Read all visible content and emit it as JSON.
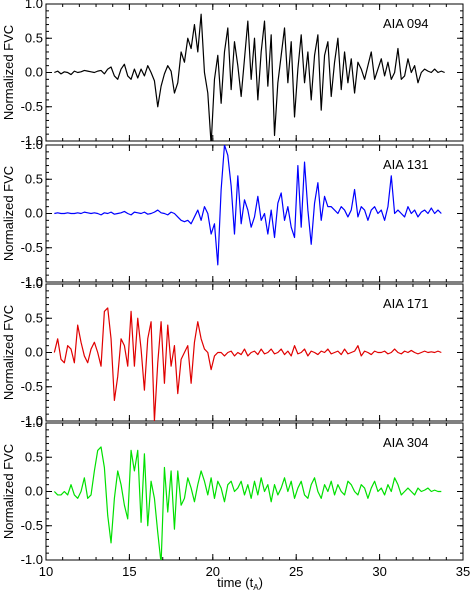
{
  "chart_data": {
    "type": "line",
    "xlabel": "time (t",
    "xlabel_sub": "A",
    "xlabel_close": ")",
    "ylabel": "Normalized FVC",
    "xlim": [
      10,
      35
    ],
    "ylim": [
      -1.0,
      1.0
    ],
    "x_ticks": [
      10,
      15,
      20,
      25,
      30,
      35
    ],
    "y_ticks": [
      1.0,
      0.5,
      0.0,
      -0.5,
      -1.0
    ],
    "x_tick_labels": [
      "10",
      "15",
      "20",
      "25",
      "30",
      "35"
    ],
    "y_tick_labels": [
      "1.0",
      "0.5",
      "0.0",
      "-0.5",
      "-1.0"
    ],
    "grid": false,
    "panels": [
      {
        "label": "AIA 094",
        "color": "#000000",
        "x_start": 10.5,
        "x_step": 0.2,
        "values": [
          0.0,
          0.02,
          -0.02,
          0.01,
          0.0,
          -0.03,
          0.02,
          0.0,
          0.01,
          0.03,
          0.02,
          0.01,
          0.0,
          0.02,
          0.03,
          -0.02,
          0.05,
          0.08,
          -0.05,
          -0.1,
          0.05,
          0.12,
          -0.05,
          -0.1,
          0.05,
          -0.08,
          0.05,
          -0.05,
          0.1,
          0.0,
          -0.12,
          -0.5,
          -0.2,
          -0.02,
          0.1,
          0.02,
          -0.3,
          -0.15,
          0.3,
          0.15,
          0.5,
          0.35,
          0.7,
          0.3,
          0.85,
          0.0,
          -0.3,
          -1.05,
          -0.1,
          0.25,
          -0.45,
          0.3,
          0.65,
          -0.25,
          0.45,
          0.1,
          -0.35,
          0.2,
          0.75,
          -0.1,
          0.5,
          -0.4,
          0.3,
          0.75,
          -0.2,
          0.55,
          -0.92,
          -0.15,
          0.25,
          0.65,
          -0.15,
          0.45,
          -0.65,
          0.05,
          0.55,
          -0.15,
          0.3,
          -0.4,
          0.25,
          0.55,
          -0.55,
          0.25,
          0.45,
          -0.35,
          0.15,
          0.5,
          -0.25,
          0.3,
          -0.15,
          0.2,
          -0.3,
          0.15,
          0.05,
          -0.1,
          0.1,
          0.3,
          -0.1,
          0.05,
          0.2,
          -0.05,
          0.15,
          -0.1,
          0.0,
          0.35,
          -0.1,
          -0.05,
          0.2,
          0.0,
          0.1,
          -0.15,
          0.0,
          0.05,
          0.02,
          0.0,
          0.05,
          0.0,
          0.02,
          0.0
        ],
        "first_peak_index": 45
      },
      {
        "label": "AIA 131",
        "color": "#0000ff",
        "x_start": 10.5,
        "x_step": 0.2,
        "values": [
          0.0,
          0.01,
          0.0,
          0.0,
          0.01,
          0.0,
          0.0,
          0.01,
          0.0,
          0.02,
          0.01,
          0.0,
          0.01,
          0.0,
          -0.02,
          0.01,
          0.0,
          0.02,
          -0.01,
          0.0,
          0.01,
          0.03,
          0.0,
          -0.02,
          0.02,
          0.01,
          0.0,
          0.02,
          -0.01,
          0.0,
          0.02,
          0.05,
          0.01,
          0.0,
          -0.02,
          0.02,
          0.0,
          -0.05,
          -0.1,
          -0.12,
          -0.1,
          -0.15,
          -0.05,
          0.05,
          -0.1,
          0.1,
          0.0,
          -0.3,
          -0.15,
          -0.75,
          0.35,
          1.0,
          0.85,
          0.4,
          -0.3,
          0.55,
          -0.15,
          0.2,
          0.05,
          -0.2,
          -0.05,
          0.25,
          -0.1,
          0.0,
          -0.3,
          0.05,
          -0.35,
          0.15,
          0.3,
          -0.1,
          0.1,
          -0.2,
          -0.35,
          0.7,
          -0.2,
          0.75,
          0.05,
          -0.45,
          0.15,
          0.45,
          -0.1,
          0.25,
          0.1,
          0.1,
          0.05,
          0.0,
          0.1,
          0.05,
          -0.05,
          0.05,
          0.35,
          -0.05,
          0.1,
          0.05,
          -0.1,
          0.05,
          0.1,
          0.0,
          0.05,
          -0.1,
          0.1,
          0.55,
          0.0,
          0.05,
          0.0,
          -0.05,
          0.1,
          0.0,
          0.05,
          -0.05,
          0.02,
          0.05,
          0.0,
          0.08,
          0.0,
          0.05,
          0.0
        ],
        "first_peak_index": 50
      },
      {
        "label": "AIA 171",
        "color": "#e00000",
        "x_start": 10.5,
        "x_step": 0.2,
        "values": [
          0.0,
          0.2,
          -0.1,
          -0.15,
          0.1,
          0.05,
          -0.15,
          0.4,
          0.15,
          -0.05,
          -0.15,
          0.05,
          0.15,
          0.0,
          -0.2,
          0.6,
          0.65,
          0.2,
          -0.7,
          -0.35,
          0.2,
          0.1,
          -0.2,
          0.6,
          -0.2,
          0.5,
          0.05,
          -0.55,
          0.2,
          0.45,
          -1.0,
          -0.15,
          0.45,
          -0.45,
          0.4,
          -0.2,
          0.1,
          -0.6,
          -0.1,
          0.0,
          0.1,
          -0.45,
          0.15,
          0.45,
          0.2,
          0.05,
          0.0,
          -0.25,
          -0.05,
          0.0,
          0.0,
          -0.05,
          0.0,
          0.02,
          -0.05,
          0.0,
          -0.03,
          0.05,
          -0.05,
          0.0,
          0.02,
          -0.03,
          0.05,
          -0.02,
          0.0,
          0.05,
          -0.02,
          0.0,
          0.05,
          -0.03,
          0.02,
          -0.05,
          0.1,
          -0.02,
          0.0,
          0.05,
          -0.05,
          0.02,
          0.0,
          -0.03,
          0.02,
          0.0,
          0.05,
          -0.02,
          0.0,
          0.02,
          -0.03,
          0.05,
          -0.02,
          0.0,
          0.02,
          0.1,
          -0.05,
          0.02,
          0.0,
          -0.03,
          0.02,
          0.0,
          0.0,
          0.02,
          -0.02,
          0.0,
          0.05,
          0.0,
          -0.02,
          0.02,
          0.0,
          0.03,
          0.0,
          -0.02,
          0.0,
          0.02,
          0.0,
          0.01,
          0.0,
          0.02,
          0.0
        ],
        "first_peak_index": 15
      },
      {
        "label": "AIA 304",
        "color": "#00e000",
        "x_start": 10.5,
        "x_step": 0.2,
        "values": [
          0.0,
          -0.05,
          -0.05,
          0.0,
          -0.05,
          0.1,
          -0.05,
          -0.1,
          0.0,
          0.2,
          -0.1,
          -0.05,
          0.3,
          0.6,
          0.65,
          0.35,
          -0.35,
          -0.75,
          -0.1,
          0.3,
          0.1,
          -0.2,
          -0.4,
          0.6,
          0.3,
          0.6,
          -0.45,
          0.55,
          -0.5,
          0.15,
          -0.1,
          -0.6,
          -1.05,
          0.35,
          -0.3,
          0.3,
          -0.55,
          0.3,
          -0.2,
          -0.1,
          0.2,
          0.05,
          -0.15,
          0.1,
          0.3,
          0.15,
          -0.05,
          0.2,
          -0.1,
          0.15,
          0.05,
          -0.15,
          0.1,
          0.15,
          0.0,
          0.05,
          0.15,
          -0.05,
          0.1,
          -0.1,
          0.15,
          -0.05,
          0.2,
          0.0,
          0.1,
          -0.15,
          0.1,
          -0.05,
          0.05,
          0.2,
          0.0,
          0.15,
          -0.1,
          0.05,
          0.15,
          -0.05,
          -0.1,
          0.1,
          0.2,
          0.0,
          -0.1,
          0.1,
          0.0,
          0.15,
          -0.05,
          0.1,
          0.0,
          -0.05,
          0.15,
          0.1,
          0.0,
          -0.05,
          0.1,
          0.05,
          -0.1,
          0.05,
          0.15,
          0.0,
          0.05,
          -0.05,
          0.1,
          0.0,
          0.2,
          0.1,
          -0.05,
          0.0,
          0.05,
          0.0,
          -0.05,
          0.05,
          0.0,
          0.02,
          0.05,
          0.0,
          0.02,
          0.0,
          0.0
        ],
        "first_peak_index": 13
      }
    ]
  }
}
